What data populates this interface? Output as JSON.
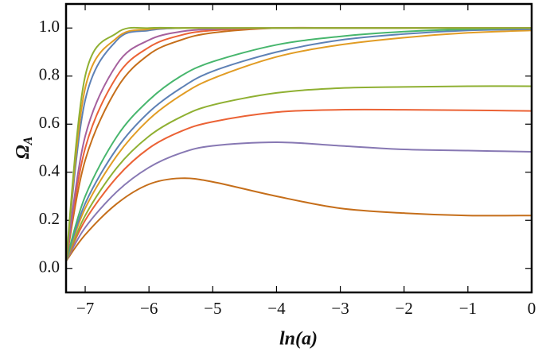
{
  "chart_data": {
    "type": "line",
    "xlabel": "ln(a)",
    "ylabel": "Ω",
    "ylabel_subscript": "A",
    "x": [
      -7.3,
      -7,
      -6.5,
      -6,
      -5.5,
      -5,
      -4,
      -3,
      -2,
      -1,
      0
    ],
    "series": [
      {
        "color": "#C56E1A",
        "values": [
          0.03,
          0.14,
          0.27,
          0.35,
          0.375,
          0.36,
          0.3,
          0.25,
          0.23,
          0.22,
          0.22
        ]
      },
      {
        "color": "#8778B3",
        "values": [
          0.03,
          0.17,
          0.32,
          0.42,
          0.48,
          0.51,
          0.525,
          0.51,
          0.495,
          0.49,
          0.485
        ]
      },
      {
        "color": "#EB6235",
        "values": [
          0.03,
          0.2,
          0.38,
          0.5,
          0.57,
          0.61,
          0.65,
          0.66,
          0.66,
          0.658,
          0.655
        ]
      },
      {
        "color": "#8FB032",
        "values": [
          0.03,
          0.22,
          0.42,
          0.55,
          0.63,
          0.68,
          0.73,
          0.75,
          0.755,
          0.758,
          0.758
        ]
      },
      {
        "color": "#E19C24",
        "values": [
          0.03,
          0.25,
          0.47,
          0.62,
          0.72,
          0.79,
          0.88,
          0.93,
          0.96,
          0.98,
          0.99
        ]
      },
      {
        "color": "#5E81B5",
        "values": [
          0.03,
          0.27,
          0.5,
          0.65,
          0.75,
          0.82,
          0.9,
          0.95,
          0.975,
          0.99,
          0.995
        ]
      },
      {
        "color": "#47B66D",
        "values": [
          0.03,
          0.3,
          0.55,
          0.7,
          0.8,
          0.86,
          0.93,
          0.965,
          0.985,
          0.995,
          1.0
        ]
      },
      {
        "color": "#C56E1A",
        "values": [
          0.03,
          0.45,
          0.75,
          0.89,
          0.95,
          0.98,
          1.0,
          1.0,
          1.0,
          1.0,
          1.0
        ]
      },
      {
        "color": "#EB6235",
        "values": [
          0.03,
          0.5,
          0.8,
          0.92,
          0.97,
          0.99,
          1.0,
          1.0,
          1.0,
          1.0,
          1.0
        ]
      },
      {
        "color": "#A5609D",
        "values": [
          0.03,
          0.55,
          0.85,
          0.95,
          0.985,
          0.995,
          1.0,
          1.0,
          1.0,
          1.0,
          1.0
        ]
      },
      {
        "color": "#5E81B5",
        "values": [
          0.03,
          0.7,
          0.95,
          0.99,
          1.0,
          1.0,
          1.0,
          1.0,
          1.0,
          1.0,
          1.0
        ]
      },
      {
        "color": "#E19C24",
        "values": [
          0.03,
          0.75,
          0.96,
          0.995,
          1.0,
          1.0,
          1.0,
          1.0,
          1.0,
          1.0,
          1.0
        ]
      },
      {
        "color": "#8FB032",
        "values": [
          0.03,
          0.8,
          0.98,
          1.0,
          1.0,
          1.0,
          1.0,
          1.0,
          1.0,
          1.0,
          1.0
        ]
      }
    ],
    "xlim": [
      -7.3,
      0
    ],
    "ylim": [
      -0.1,
      1.1
    ],
    "xticks": [
      {
        "value": -7,
        "label": "−7"
      },
      {
        "value": -6,
        "label": "−6"
      },
      {
        "value": -5,
        "label": "−5"
      },
      {
        "value": -4,
        "label": "−4"
      },
      {
        "value": -3,
        "label": "−3"
      },
      {
        "value": -2,
        "label": "−2"
      },
      {
        "value": -1,
        "label": "−1"
      },
      0
    ],
    "yticks": [
      {
        "value": 0,
        "label": "0.0"
      },
      {
        "value": 0.2,
        "label": "0.2"
      },
      {
        "value": 0.4,
        "label": "0.4"
      },
      {
        "value": 0.6,
        "label": "0.6"
      },
      {
        "value": 0.8,
        "label": "0.8"
      },
      {
        "value": 1,
        "label": "1.0"
      }
    ]
  }
}
